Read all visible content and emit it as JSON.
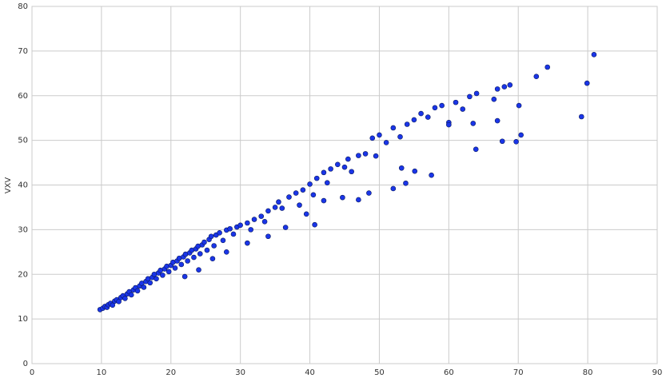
{
  "chart_data": {
    "type": "scatter",
    "y_label": "VXV",
    "x": [
      9.8,
      10.2,
      10.5,
      10.8,
      11.0,
      11.3,
      11.6,
      11.9,
      12.2,
      12.5,
      12.8,
      13.1,
      13.4,
      13.7,
      14.0,
      14.3,
      14.6,
      14.9,
      15.2,
      15.5,
      15.8,
      16.1,
      16.4,
      16.7,
      17.0,
      17.3,
      17.6,
      17.9,
      18.2,
      18.5,
      18.8,
      19.1,
      19.4,
      19.7,
      20.0,
      20.3,
      20.6,
      20.9,
      21.2,
      21.5,
      21.8,
      22.1,
      22.4,
      22.7,
      23.0,
      23.3,
      23.6,
      23.9,
      24.2,
      24.5,
      24.8,
      25.2,
      25.5,
      25.8,
      26.2,
      26.5,
      27.0,
      27.5,
      28.0,
      28.5,
      29.0,
      29.5,
      30.0,
      31.0,
      31.5,
      32.0,
      33.0,
      33.5,
      34.0,
      35.0,
      35.5,
      36.0,
      37.0,
      38.0,
      38.5,
      39.0,
      40.0,
      40.5,
      41.0,
      42.0,
      42.5,
      43.0,
      44.0,
      45.0,
      45.5,
      46.0,
      47.0,
      48.0,
      49.0,
      50.0,
      51.0,
      52.0,
      53.0,
      54.0,
      55.0,
      56.0,
      57.0,
      58.0,
      59.0,
      60.0,
      61.0,
      62.0,
      63.0,
      64.0,
      66.5,
      67.0,
      68.0,
      68.8,
      80.9,
      74.2,
      72.6,
      79.9,
      79.1,
      70.1,
      70.4,
      69.7,
      67.7,
      67.0,
      63.9,
      57.5,
      55.1,
      53.2,
      52.0,
      53.8,
      48.5,
      47.0,
      44.7,
      40.7,
      39.5,
      42.0,
      36.5,
      34.0,
      31.0,
      28.0,
      26.0,
      24.0,
      22.0,
      49.5,
      60.0,
      63.5
    ],
    "y": [
      12.1,
      12.4,
      12.8,
      12.6,
      13.2,
      13.5,
      13.1,
      14.0,
      14.3,
      13.9,
      14.8,
      15.2,
      14.6,
      15.6,
      16.1,
      15.4,
      16.5,
      17.0,
      16.3,
      17.4,
      18.0,
      17.1,
      18.4,
      19.0,
      18.1,
      19.3,
      20.0,
      19.0,
      20.3,
      20.9,
      19.8,
      21.2,
      21.8,
      20.6,
      22.0,
      22.7,
      21.4,
      23.0,
      23.6,
      22.2,
      23.9,
      24.5,
      23.0,
      24.8,
      25.4,
      23.8,
      25.7,
      26.3,
      24.6,
      26.6,
      27.2,
      25.4,
      27.8,
      28.5,
      26.4,
      28.8,
      29.3,
      27.6,
      29.9,
      30.2,
      29.0,
      30.6,
      31.0,
      31.5,
      30.0,
      32.3,
      33.0,
      31.8,
      34.2,
      35.0,
      36.2,
      34.8,
      37.3,
      38.2,
      35.5,
      38.9,
      40.2,
      37.8,
      41.5,
      42.8,
      40.5,
      43.6,
      44.6,
      44.0,
      45.8,
      43.0,
      46.6,
      47.0,
      50.5,
      51.2,
      49.5,
      52.8,
      50.8,
      53.6,
      54.6,
      56.0,
      55.2,
      57.3,
      57.8,
      54.0,
      58.5,
      57.0,
      59.8,
      60.5,
      59.2,
      61.5,
      62.0,
      62.4,
      69.2,
      66.4,
      64.3,
      62.8,
      55.3,
      57.8,
      51.2,
      49.7,
      49.8,
      54.4,
      48.0,
      42.2,
      43.1,
      43.8,
      39.2,
      40.4,
      38.2,
      36.7,
      37.2,
      31.1,
      33.5,
      36.5,
      30.5,
      28.5,
      27.0,
      25.0,
      23.5,
      21.0,
      19.5,
      46.5,
      53.5,
      53.8
    ],
    "color": "#1a35e8",
    "xlim": [
      0,
      90
    ],
    "xticks": [
      0,
      10,
      20,
      30,
      40,
      50,
      60,
      70,
      80,
      90
    ],
    "ylim": [
      0,
      80
    ],
    "yticks": [
      0,
      10,
      20,
      30,
      40,
      50,
      60,
      70,
      80
    ],
    "grid": true
  }
}
